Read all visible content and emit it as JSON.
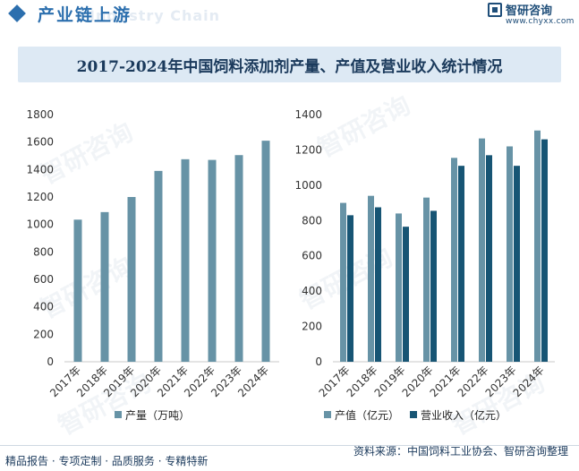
{
  "header": {
    "title": "产业链上游",
    "watermark": "Industry Chain",
    "logo_name": "智研咨询",
    "logo_url": "www.chyxx.com"
  },
  "chart_title": "2017-2024年中国饲料添加剂产量、产值及营业收入统计情况",
  "colors": {
    "series_light": "#6793a6",
    "series_dark": "#175574",
    "accent": "#2c6fae",
    "title_band": "#dde9f4"
  },
  "watermark_text": "智研咨询",
  "chart_data": [
    {
      "type": "bar",
      "categories": [
        "2017年",
        "2018年",
        "2019年",
        "2020年",
        "2021年",
        "2022年",
        "2023年",
        "2024年"
      ],
      "series": [
        {
          "name": "产量（万吨）",
          "values": [
            1035,
            1090,
            1200,
            1390,
            1475,
            1470,
            1505,
            1610
          ]
        }
      ],
      "ylim": [
        0,
        1800
      ],
      "yticks": [
        0,
        200,
        400,
        600,
        800,
        1000,
        1200,
        1400,
        1600,
        1800
      ],
      "grid": false,
      "legend": "bottom"
    },
    {
      "type": "bar",
      "categories": [
        "2017年",
        "2018年",
        "2019年",
        "2020年",
        "2021年",
        "2022年",
        "2023年",
        "2024年"
      ],
      "series": [
        {
          "name": "产值（亿元）",
          "values": [
            900,
            940,
            840,
            930,
            1155,
            1265,
            1220,
            1310
          ]
        },
        {
          "name": "营业收入（亿元）",
          "values": [
            830,
            875,
            765,
            855,
            1110,
            1170,
            1110,
            1260
          ]
        }
      ],
      "ylim": [
        0,
        1400
      ],
      "yticks": [
        0,
        200,
        400,
        600,
        800,
        1000,
        1200,
        1400
      ],
      "grid": false,
      "legend": "bottom"
    }
  ],
  "footer": {
    "left": "精品报告 · 专项定制 · 品质服务 · 专精特新",
    "right": "资料来源：中国饲料工业协会、智研咨询整理"
  }
}
